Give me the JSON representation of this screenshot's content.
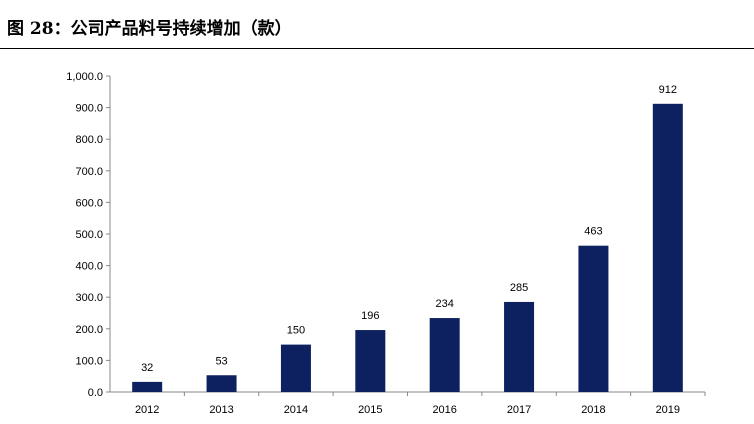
{
  "figure": {
    "title": "图 28：公司产品料号持续增加（款）"
  },
  "chart_data": {
    "type": "bar",
    "title": "图 28：公司产品料号持续增加（款）",
    "categories": [
      "2012",
      "2013",
      "2014",
      "2015",
      "2016",
      "2017",
      "2018",
      "2019"
    ],
    "values": [
      32,
      53,
      150,
      196,
      234,
      285,
      463,
      912
    ],
    "data_labels": [
      "32",
      "53",
      "150",
      "196",
      "234",
      "285",
      "463",
      "912"
    ],
    "yticks": [
      "0.0",
      "100.0",
      "200.0",
      "300.0",
      "400.0",
      "500.0",
      "600.0",
      "700.0",
      "800.0",
      "900.0",
      "1,000.0"
    ],
    "ylim": [
      0,
      1000
    ],
    "xlabel": "",
    "ylabel": "",
    "grid": false,
    "legend": "none",
    "bar_color": "#0d2160"
  }
}
